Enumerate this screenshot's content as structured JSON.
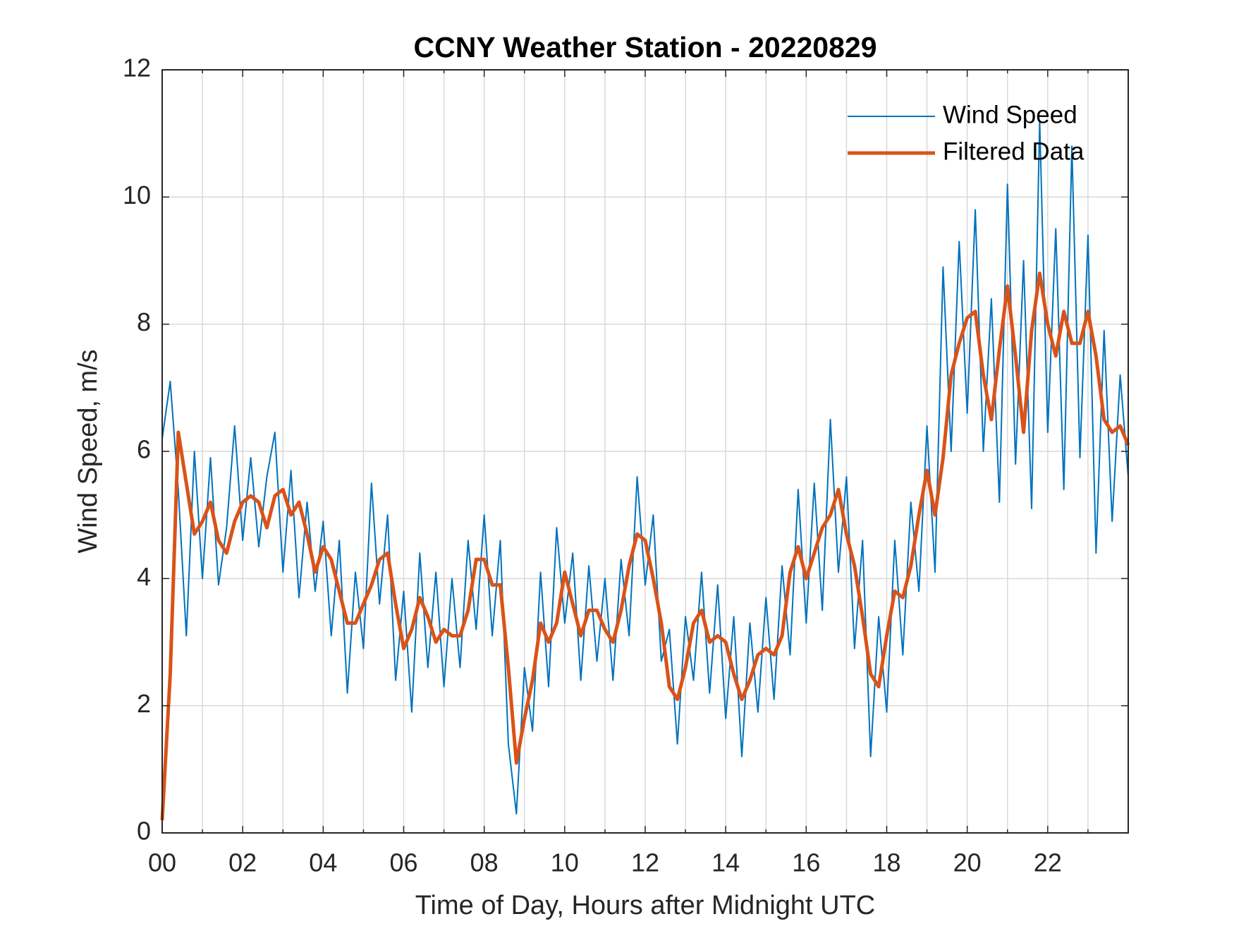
{
  "chart_data": {
    "type": "line",
    "title": "CCNY Weather Station - 20220829",
    "xlabel": "Time of Day, Hours after Midnight UTC",
    "ylabel": "Wind Speed, m/s",
    "x": [
      0,
      0.2,
      0.4,
      0.6,
      0.8,
      1,
      1.2,
      1.4,
      1.6,
      1.8,
      2,
      2.2,
      2.4,
      2.6,
      2.8,
      3,
      3.2,
      3.4,
      3.6,
      3.8,
      4,
      4.2,
      4.4,
      4.6,
      4.8,
      5,
      5.2,
      5.4,
      5.6,
      5.8,
      6,
      6.2,
      6.4,
      6.6,
      6.8,
      7,
      7.2,
      7.4,
      7.6,
      7.8,
      8,
      8.2,
      8.4,
      8.6,
      8.8,
      9,
      9.2,
      9.4,
      9.6,
      9.8,
      10,
      10.2,
      10.4,
      10.6,
      10.8,
      11,
      11.2,
      11.4,
      11.6,
      11.8,
      12,
      12.2,
      12.4,
      12.6,
      12.8,
      13,
      13.2,
      13.4,
      13.6,
      13.8,
      14,
      14.2,
      14.4,
      14.6,
      14.8,
      15,
      15.2,
      15.4,
      15.6,
      15.8,
      16,
      16.2,
      16.4,
      16.6,
      16.8,
      17,
      17.2,
      17.4,
      17.6,
      17.8,
      18,
      18.2,
      18.4,
      18.6,
      18.8,
      19,
      19.2,
      19.4,
      19.6,
      19.8,
      20,
      20.2,
      20.4,
      20.6,
      20.8,
      21,
      21.2,
      21.4,
      21.6,
      21.8,
      22,
      22.2,
      22.4,
      22.6,
      22.8,
      23,
      23.2,
      23.4,
      23.6,
      23.8,
      24
    ],
    "series": [
      {
        "name": "Wind Speed",
        "color": "#0072BD",
        "width": 2,
        "values": [
          6.2,
          7.1,
          5.4,
          3.1,
          6.0,
          4.0,
          5.9,
          3.9,
          4.8,
          6.4,
          4.6,
          5.9,
          4.5,
          5.6,
          6.3,
          4.1,
          5.7,
          3.7,
          5.2,
          3.8,
          4.9,
          3.1,
          4.6,
          2.2,
          4.1,
          2.9,
          5.5,
          3.6,
          5.0,
          2.4,
          3.8,
          1.9,
          4.4,
          2.6,
          4.1,
          2.3,
          4.0,
          2.6,
          4.6,
          3.2,
          5.0,
          3.1,
          4.6,
          1.4,
          0.3,
          2.6,
          1.6,
          4.1,
          2.3,
          4.8,
          3.3,
          4.4,
          2.4,
          4.2,
          2.7,
          4.0,
          2.4,
          4.3,
          3.1,
          5.6,
          3.9,
          5.0,
          2.7,
          3.2,
          1.4,
          3.4,
          2.4,
          4.1,
          2.2,
          3.9,
          1.8,
          3.4,
          1.2,
          3.3,
          1.9,
          3.7,
          2.1,
          4.2,
          2.8,
          5.4,
          3.3,
          5.5,
          3.5,
          6.5,
          4.1,
          5.6,
          2.9,
          4.6,
          1.2,
          3.4,
          1.9,
          4.6,
          2.8,
          5.2,
          3.8,
          6.4,
          4.1,
          8.9,
          6.0,
          9.3,
          6.6,
          9.8,
          6.0,
          8.4,
          5.2,
          10.2,
          5.8,
          9.0,
          5.1,
          11.2,
          6.3,
          9.5,
          5.4,
          10.8,
          5.9,
          9.4,
          4.4,
          7.9,
          4.9,
          7.2,
          5.6
        ]
      },
      {
        "name": "Filtered Data",
        "color": "#D95319",
        "width": 5,
        "values": [
          0.2,
          2.5,
          6.3,
          5.5,
          4.7,
          4.9,
          5.2,
          4.6,
          4.4,
          4.9,
          5.2,
          5.3,
          5.2,
          4.8,
          5.3,
          5.4,
          5.0,
          5.2,
          4.7,
          4.1,
          4.5,
          4.3,
          3.8,
          3.3,
          3.3,
          3.6,
          3.9,
          4.3,
          4.4,
          3.6,
          2.9,
          3.2,
          3.7,
          3.4,
          3.0,
          3.2,
          3.1,
          3.1,
          3.5,
          4.3,
          4.3,
          3.9,
          3.9,
          2.6,
          1.1,
          1.8,
          2.4,
          3.3,
          3.0,
          3.3,
          4.1,
          3.6,
          3.1,
          3.5,
          3.5,
          3.2,
          3.0,
          3.5,
          4.2,
          4.7,
          4.6,
          4.0,
          3.3,
          2.3,
          2.1,
          2.6,
          3.3,
          3.5,
          3.0,
          3.1,
          3.0,
          2.5,
          2.1,
          2.4,
          2.8,
          2.9,
          2.8,
          3.1,
          4.1,
          4.5,
          4.0,
          4.4,
          4.8,
          5.0,
          5.4,
          4.7,
          4.2,
          3.4,
          2.5,
          2.3,
          3.1,
          3.8,
          3.7,
          4.2,
          5.0,
          5.7,
          5.0,
          5.9,
          7.2,
          7.7,
          8.1,
          8.2,
          7.2,
          6.5,
          7.6,
          8.6,
          7.5,
          6.3,
          7.9,
          8.8,
          8.0,
          7.5,
          8.2,
          7.7,
          7.7,
          8.2,
          7.5,
          6.5,
          6.3,
          6.4,
          6.1
        ]
      }
    ],
    "xlim": [
      0,
      24
    ],
    "xticks": [
      {
        "value": 0,
        "label": "00"
      },
      {
        "value": 2,
        "label": "02"
      },
      {
        "value": 4,
        "label": "04"
      },
      {
        "value": 6,
        "label": "06"
      },
      {
        "value": 8,
        "label": "08"
      },
      {
        "value": 10,
        "label": "10"
      },
      {
        "value": 12,
        "label": "12"
      },
      {
        "value": 14,
        "label": "14"
      },
      {
        "value": 16,
        "label": "16"
      },
      {
        "value": 18,
        "label": "18"
      },
      {
        "value": 20,
        "label": "20"
      },
      {
        "value": 22,
        "label": "22"
      }
    ],
    "xminorticks": [
      1,
      3,
      5,
      7,
      9,
      11,
      13,
      15,
      17,
      19,
      21,
      23
    ],
    "ylim": [
      0,
      12
    ],
    "yticks": [
      0,
      2,
      4,
      6,
      8,
      10,
      12
    ],
    "grid": true,
    "legend": "northeast"
  }
}
